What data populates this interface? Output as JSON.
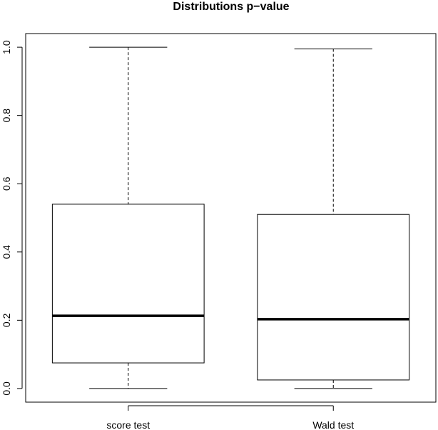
{
  "chart_data": {
    "type": "boxplot",
    "title": "Distributions p−value",
    "xlabel": "",
    "ylabel": "",
    "categories": [
      "score test",
      "Wald test"
    ],
    "boxes": [
      {
        "category": "score test",
        "min": 0.0,
        "q1": 0.075,
        "median": 0.213,
        "q3": 0.54,
        "max": 1.0
      },
      {
        "category": "Wald test",
        "min": 0.0,
        "q1": 0.025,
        "median": 0.203,
        "q3": 0.51,
        "max": 0.995
      }
    ],
    "ylim": [
      -0.04,
      1.04
    ],
    "yticks": [
      0.0,
      0.2,
      0.4,
      0.6,
      0.8,
      1.0
    ],
    "ytick_labels": [
      "0.0",
      "0.2",
      "0.4",
      "0.6",
      "0.8",
      "1.0"
    ],
    "grid": false,
    "legend": "none"
  }
}
